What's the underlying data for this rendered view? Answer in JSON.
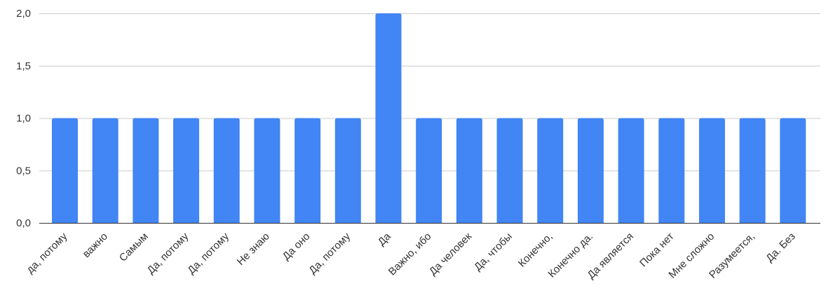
{
  "chart_data": {
    "type": "bar",
    "categories": [
      "да, потому",
      "важно",
      "Самым",
      "Да, потому",
      "Да, потому",
      "Не знаю",
      "Да оно",
      "Да, потому",
      "Да",
      "Важно, ибо",
      "Да человек",
      "Да, чтобы",
      "Конечно,",
      "Конечно да.",
      "Да является",
      "Пока нет",
      "Мне сложно",
      "Разумеется,",
      "Да. Без"
    ],
    "values": [
      1,
      1,
      1,
      1,
      1,
      1,
      1,
      1,
      2,
      1,
      1,
      1,
      1,
      1,
      1,
      1,
      1,
      1,
      1
    ],
    "yticks": [
      "0,0",
      "0,5",
      "1,0",
      "1,5",
      "2,0"
    ],
    "ylim": [
      0,
      2
    ],
    "grid": true,
    "title": "",
    "xlabel": "",
    "ylabel": "",
    "bar_color": "#4285f4"
  }
}
